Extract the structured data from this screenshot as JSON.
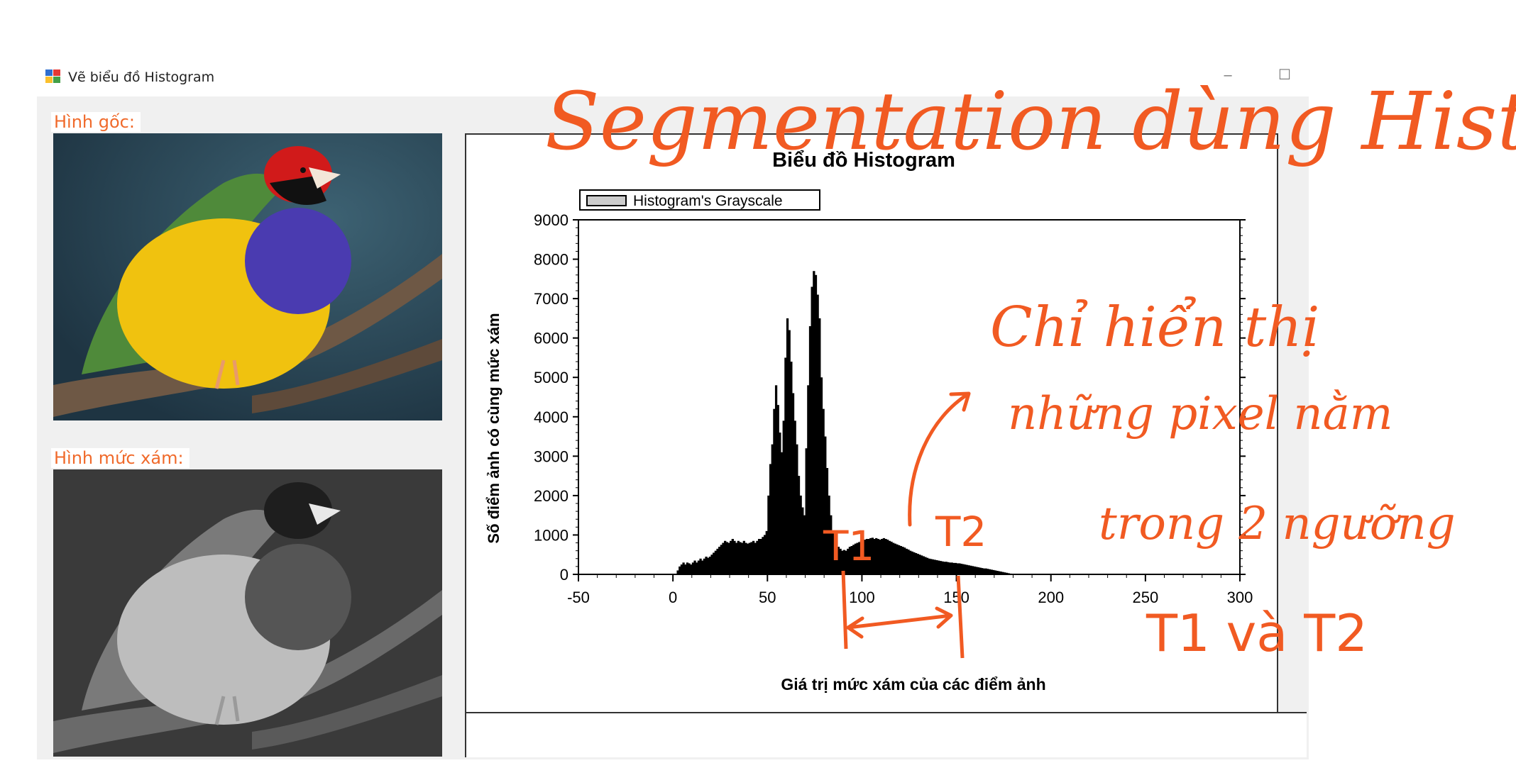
{
  "window": {
    "title": "Vẽ biểu đồ Histogram",
    "minimize_glyph": "–",
    "maximize_glyph": "☐",
    "icon": "app-window-icon"
  },
  "images": {
    "original_label": "Hình gốc:",
    "gray_label": "Hình mức xám:"
  },
  "chart_data": {
    "type": "bar",
    "title": "Biểu đồ Histogram",
    "legend": "Histogram's Grayscale",
    "legend_position": "top-left",
    "xlabel": "Giá trị mức xám của các điểm ảnh",
    "ylabel": "Số điểm ảnh có cùng mức xám",
    "xlim": [
      -50,
      300
    ],
    "ylim": [
      0,
      9000
    ],
    "x_ticks": [
      -50,
      0,
      50,
      100,
      150,
      200,
      250,
      300
    ],
    "y_ticks": [
      0,
      1000,
      2000,
      3000,
      4000,
      5000,
      6000,
      7000,
      8000,
      9000
    ],
    "x_tick_labels": [
      "-50",
      "0",
      "50",
      "100",
      "150",
      "200",
      "250",
      "300"
    ],
    "y_tick_labels": [
      "0",
      "1000",
      "2000",
      "3000",
      "4000",
      "5000",
      "6000",
      "7000",
      "8000",
      "9000"
    ],
    "grid": false,
    "series": [
      {
        "name": "Histogram's Grayscale",
        "x_start": 0,
        "values": [
          0,
          0,
          100,
          200,
          250,
          300,
          250,
          300,
          280,
          250,
          300,
          350,
          300,
          350,
          400,
          350,
          400,
          450,
          420,
          450,
          500,
          550,
          600,
          650,
          700,
          750,
          800,
          850,
          820,
          800,
          850,
          900,
          850,
          800,
          850,
          820,
          800,
          850,
          800,
          780,
          800,
          820,
          850,
          800,
          850,
          900,
          900,
          950,
          1000,
          1100,
          2000,
          2800,
          3300,
          4200,
          4800,
          4300,
          3600,
          3100,
          3900,
          5500,
          6500,
          6200,
          5400,
          4600,
          3900,
          3300,
          2500,
          2000,
          1700,
          1500,
          3200,
          4800,
          6300,
          7300,
          7700,
          7600,
          7100,
          6500,
          5000,
          4200,
          3500,
          2700,
          2000,
          1500,
          1100,
          900,
          800,
          700,
          650,
          600,
          620,
          600,
          650,
          700,
          720,
          750,
          780,
          800,
          820,
          850,
          870,
          880,
          900,
          900,
          920,
          930,
          900,
          920,
          900,
          880,
          900,
          920,
          900,
          880,
          850,
          830,
          800,
          780,
          760,
          740,
          720,
          700,
          680,
          650,
          630,
          600,
          580,
          560,
          540,
          520,
          500,
          480,
          460,
          440,
          420,
          400,
          390,
          380,
          370,
          360,
          350,
          340,
          330,
          320,
          320,
          310,
          300,
          300,
          290,
          290,
          280,
          280,
          270,
          260,
          250,
          240,
          230,
          220,
          210,
          200,
          190,
          180,
          170,
          160,
          150,
          150,
          140,
          130,
          120,
          110,
          100,
          90,
          80,
          70,
          60,
          50,
          40,
          30,
          20,
          10,
          0,
          0,
          0,
          0,
          0,
          0,
          0,
          0,
          0,
          0,
          0,
          0,
          0,
          0,
          0,
          0,
          0,
          0,
          0,
          0,
          0,
          0,
          0,
          0,
          0,
          0,
          0,
          0,
          0,
          0,
          0,
          0,
          0,
          0,
          0,
          0,
          0,
          0,
          0,
          0,
          0,
          0,
          0,
          0,
          0,
          0,
          0,
          0,
          0,
          0,
          0,
          0,
          0,
          0,
          0,
          0,
          0,
          0,
          0,
          0,
          0,
          0,
          0,
          0,
          0,
          0,
          0,
          0,
          0,
          0,
          0,
          0,
          0,
          0,
          0,
          0
        ]
      }
    ]
  },
  "annotations": {
    "title": "Segmentation dùng Histogram",
    "note_line1": "Chỉ hiển thị",
    "note_line2": "những pixel nằm",
    "note_line3": "trong 2 ngưỡng",
    "note_line4": "T1 và T2",
    "t1": "T1",
    "t2": "T2",
    "color": "#f15a22"
  }
}
